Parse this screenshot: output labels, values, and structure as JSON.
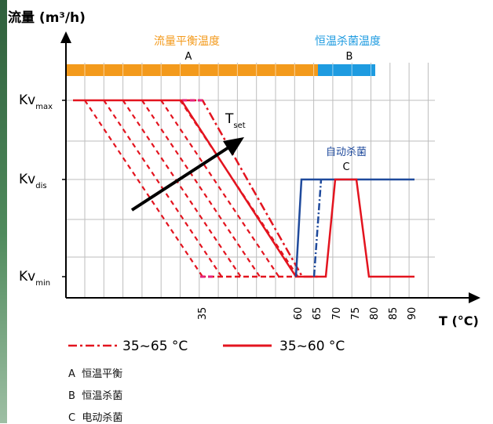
{
  "title": "流量 (m³/h)",
  "x_axis_label": "T (°C)",
  "x_ticks": [
    "35",
    "60",
    "65",
    "70",
    "75",
    "80",
    "85",
    "90"
  ],
  "y_labels": [
    {
      "main": "Kv",
      "sub": "max"
    },
    {
      "main": "Kv",
      "sub": "dis"
    },
    {
      "main": "Kv",
      "sub": "min"
    }
  ],
  "zones": {
    "a_title": "流量平衡温度",
    "a_letter": "A",
    "b_title": "恒温杀菌温度",
    "b_letter": "B",
    "c_title": "自动杀菌",
    "c_letter": "C"
  },
  "arrow_label": {
    "main": "T",
    "sub": "set"
  },
  "legend": {
    "dashed": "35~65 °C",
    "solid": "35~60 °C"
  },
  "key": [
    {
      "letter": "A",
      "text": "恒温平衡"
    },
    {
      "letter": "B",
      "text": "恒温杀菌"
    },
    {
      "letter": "C",
      "text": "电动杀菌"
    }
  ],
  "colors": {
    "grid": "#bdbdbd",
    "orange": "#f39a1c",
    "blue_zone": "#1e9be0",
    "red": "#e3141f",
    "magenta": "#e6227c",
    "navy": "#1f4a9c",
    "accent": "#3f7a4c"
  }
}
